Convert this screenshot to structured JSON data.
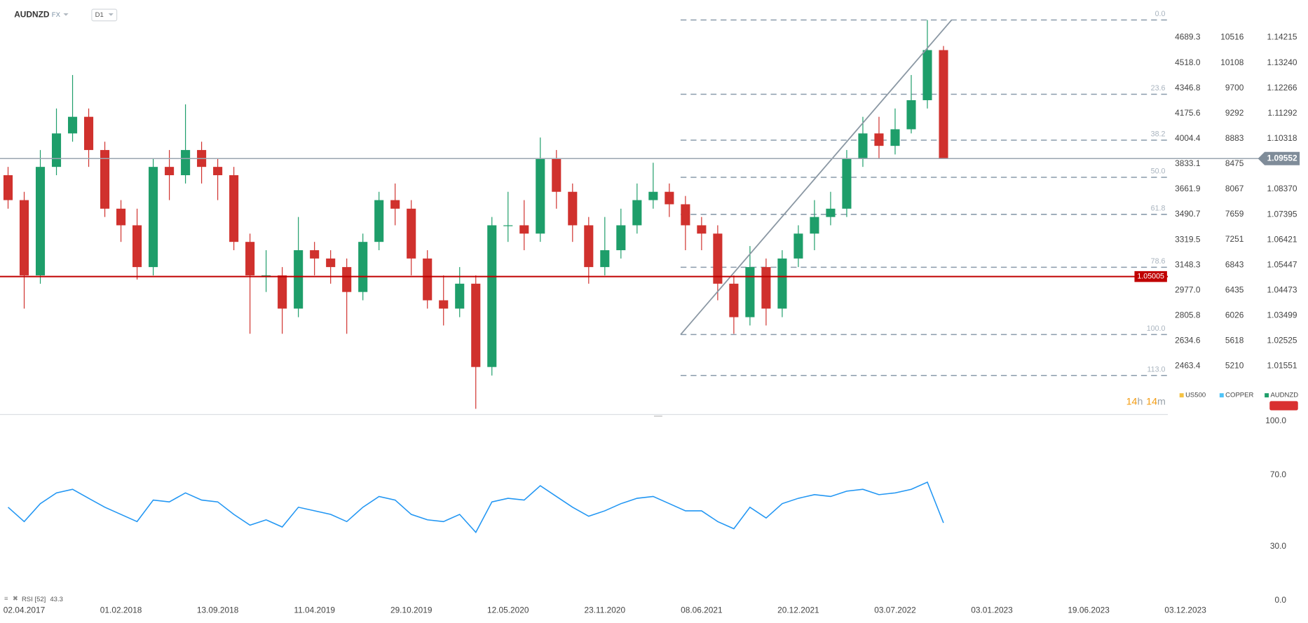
{
  "chart_data": [
    {
      "type": "candlestick",
      "title": "AUDNZD",
      "market": "FX",
      "interval": "D1",
      "open": [
        1.0891,
        1.0795,
        1.0505,
        1.0923,
        1.1052,
        1.1116,
        1.0988,
        1.0762,
        1.0698,
        1.0537,
        1.0923,
        1.0891,
        1.0988,
        1.0923,
        1.0891,
        1.0634,
        1.0505,
        1.0505,
        1.0377,
        1.0602,
        1.057,
        1.0537,
        1.0441,
        1.0634,
        1.0795,
        1.0762,
        1.057,
        1.0409,
        1.0377,
        1.0473,
        1.0152,
        1.0698,
        1.0698,
        1.0666,
        1.0955,
        1.0827,
        1.0698,
        1.0537,
        1.0602,
        1.0698,
        1.0795,
        1.0827,
        1.0779,
        1.0698,
        1.0666,
        1.0473,
        1.0344,
        1.0537,
        1.0377,
        1.057,
        1.0666,
        1.073,
        1.0762,
        1.0955,
        1.1052,
        1.1004,
        1.1068,
        1.118,
        1.1373
      ],
      "high": [
        1.0923,
        1.0827,
        1.0988,
        1.1148,
        1.1277,
        1.1148,
        1.102,
        1.0795,
        1.0762,
        1.0955,
        1.0988,
        1.1164,
        1.102,
        1.0955,
        1.0923,
        1.0666,
        1.0602,
        1.0537,
        1.073,
        1.0634,
        1.0602,
        1.057,
        1.0666,
        1.0827,
        1.0859,
        1.0795,
        1.0602,
        1.0505,
        1.0537,
        1.0505,
        1.073,
        1.0827,
        1.0795,
        1.1036,
        1.0988,
        1.0859,
        1.073,
        1.073,
        1.0762,
        1.0859,
        1.0939,
        1.0859,
        1.0811,
        1.073,
        1.0698,
        1.0505,
        1.0618,
        1.057,
        1.0602,
        1.0698,
        1.0795,
        1.0827,
        1.0988,
        1.1116,
        1.1116,
        1.1148,
        1.1277,
        1.1489,
        1.1389
      ],
      "low": [
        1.0762,
        1.0377,
        1.0473,
        1.0891,
        1.102,
        1.0923,
        1.073,
        1.0634,
        1.0489,
        1.0505,
        1.0795,
        1.0859,
        1.0859,
        1.0795,
        1.0602,
        1.028,
        1.0441,
        1.028,
        1.0344,
        1.0505,
        1.0473,
        1.028,
        1.0409,
        1.0602,
        1.0698,
        1.0505,
        1.0377,
        1.0312,
        1.0344,
        0.9991,
        1.0119,
        1.0634,
        1.0602,
        1.0634,
        1.0762,
        1.0634,
        1.0473,
        1.0505,
        1.057,
        1.0666,
        1.0762,
        1.073,
        1.0602,
        1.0602,
        1.0409,
        1.028,
        1.0312,
        1.0312,
        1.0344,
        1.0537,
        1.0602,
        1.0698,
        1.073,
        1.0923,
        1.0955,
        1.0971,
        1.1052,
        1.1148,
        1.0955
      ],
      "close": [
        1.0795,
        1.0505,
        1.0923,
        1.1052,
        1.1116,
        1.0988,
        1.0762,
        1.0698,
        1.0537,
        1.0923,
        1.0891,
        1.0988,
        1.0923,
        1.0891,
        1.0634,
        1.0505,
        1.0505,
        1.0377,
        1.0602,
        1.057,
        1.0537,
        1.0441,
        1.0634,
        1.0795,
        1.0762,
        1.057,
        1.0409,
        1.0377,
        1.0473,
        1.0152,
        1.0698,
        1.0698,
        1.0666,
        1.0955,
        1.0827,
        1.0698,
        1.0537,
        1.0602,
        1.0698,
        1.0795,
        1.0827,
        1.0779,
        1.0698,
        1.0666,
        1.0473,
        1.0344,
        1.0537,
        1.0377,
        1.057,
        1.0666,
        1.073,
        1.0762,
        1.0955,
        1.1052,
        1.1004,
        1.1068,
        1.118,
        1.1373,
        1.0955
      ],
      "color_up": "#1e9e6a",
      "color_down": "#d0312d",
      "ylim": [
        0.9969,
        1.1566
      ],
      "yticks": [
        1.14215,
        {
          "value": 1.1324,
          "label": "1.13240"
        },
        1.12266,
        1.11292,
        1.10318,
        {
          "value": 1.0837,
          "label": "1.08370"
        },
        1.07395,
        1.06421,
        1.05447,
        1.04473,
        1.03499,
        1.02525,
        1.01551
      ],
      "xlim": [
        -0.5,
        80.6
      ],
      "xticks": [
        {
          "value": 1,
          "label": "02.04.2017"
        },
        {
          "value": 7,
          "label": "01.02.2018"
        },
        {
          "value": 13,
          "label": "13.09.2018"
        },
        {
          "value": 19,
          "label": "11.04.2019"
        },
        {
          "value": 25,
          "label": "29.10.2019"
        },
        {
          "value": 31,
          "label": "12.05.2020"
        },
        {
          "value": 37,
          "label": "23.11.2020"
        },
        {
          "value": 43,
          "label": "08.06.2021"
        },
        {
          "value": 49,
          "label": "20.12.2021"
        },
        {
          "value": 55,
          "label": "03.07.2022"
        },
        {
          "value": 61,
          "label": "03.01.2023"
        },
        {
          "value": 67,
          "label": "19.06.2023"
        },
        {
          "value": 73,
          "label": "03.12.2023"
        }
      ],
      "extra_axes": [
        {
          "name": "US500",
          "ylim": [
            2135.7,
            4943.6
          ],
          "yticks": [
            4689.3,
            {
              "value": 4518,
              "label": "4518.0"
            },
            4346.8,
            4175.6,
            4004.4,
            3833.1,
            3661.9,
            3490.7,
            3319.5,
            3148.3,
            {
              "value": 2977,
              "label": "2977.0"
            },
            2805.8,
            2634.6,
            2463.4
          ]
        },
        {
          "name": "COPPER",
          "ylim": [
            4429,
            11122
          ],
          "yticks": [
            10516,
            10108,
            9700,
            9292,
            8883,
            8475,
            8067,
            7659,
            7251,
            6843,
            6435,
            6026,
            5618,
            5210
          ]
        }
      ],
      "legend": [
        {
          "name": "US500",
          "color": "#f5c242"
        },
        {
          "name": "COPPER",
          "color": "#4fc3f7"
        },
        {
          "name": "AUDNZD",
          "color": "#1e9e6a"
        }
      ],
      "fibonacci": {
        "high": 1.1489,
        "low": 1.0277,
        "anchors_x": [
          41.7,
          58.5
        ],
        "color": "#8a9bab",
        "levels": [
          {
            "value": 0,
            "label": "0.0"
          },
          23.6,
          38.2,
          {
            "value": 50,
            "label": "50.0"
          },
          61.8,
          78.6,
          {
            "value": 100,
            "label": "100.0"
          },
          {
            "value": 113,
            "label": "113.0"
          }
        ]
      },
      "horizontal_level": {
        "value": 1.05005,
        "color": "#c00000"
      },
      "current_price": {
        "value": 1.09552,
        "color": "#7f8c99"
      }
    },
    {
      "type": "line",
      "label": "RSI [52]",
      "color": "#2196f3",
      "values": [
        52,
        44,
        54,
        60,
        62,
        57,
        52,
        48,
        44,
        56,
        55,
        60,
        56,
        55,
        48,
        42,
        45,
        41,
        52,
        50,
        48,
        44,
        52,
        58,
        56,
        48,
        45,
        44,
        48,
        38,
        55,
        57,
        56,
        64,
        58,
        52,
        47,
        50,
        54,
        57,
        58,
        54,
        50,
        50,
        44,
        40,
        52,
        46,
        54,
        57,
        59,
        58,
        61,
        62,
        59,
        60,
        62,
        66,
        43.3
      ],
      "ylim": [
        0,
        100
      ],
      "yticks": [
        {
          "value": 100,
          "label": "100.0"
        },
        {
          "value": 70,
          "label": "70.0"
        },
        {
          "value": 30,
          "label": "30.0"
        },
        {
          "value": 0,
          "label": "0.0"
        }
      ]
    }
  ],
  "timer": {
    "hours": "14",
    "hour_unit": "h",
    "minutes": "14",
    "minute_unit": "m"
  }
}
